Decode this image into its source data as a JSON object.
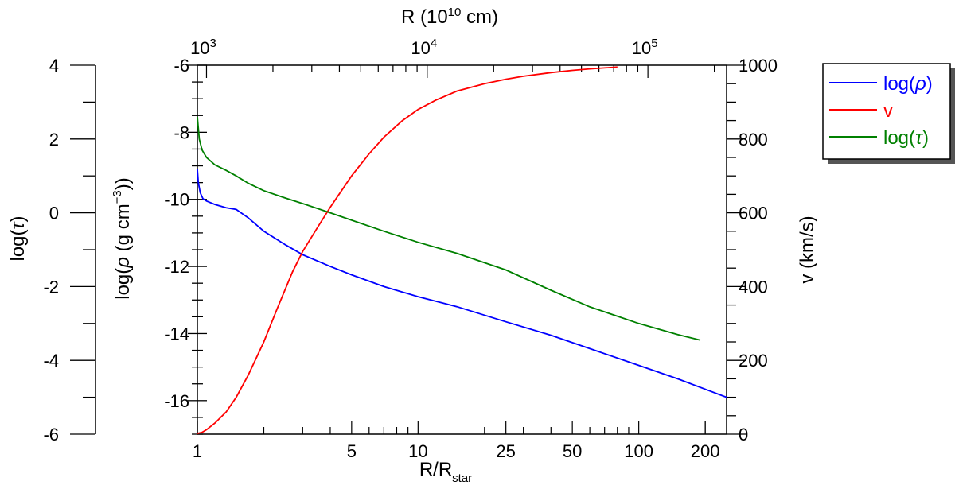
{
  "chart_data": {
    "type": "line",
    "x_scale": "log",
    "xlim": [
      1,
      250
    ],
    "xlabel_main": "R/R",
    "xlabel_sub": "star",
    "x_ticks": [
      1,
      5,
      10,
      25,
      50,
      100,
      200
    ],
    "x_tick_labels": [
      "1",
      "5",
      "10",
      "25",
      "50",
      "100",
      "200"
    ],
    "top_axis": {
      "label_main": "R (10",
      "label_sup": "10",
      "label_tail": " cm)",
      "ticks": [
        {
          "r_rstar": 1.1,
          "base": "10",
          "exp": "3"
        },
        {
          "r_rstar": 11.0,
          "base": "10",
          "exp": "4"
        },
        {
          "r_rstar": 110.0,
          "base": "10",
          "exp": "5"
        }
      ]
    },
    "rho_axis": {
      "label_pre": "log(",
      "label_rho": "ρ",
      "label_mid": " (g cm",
      "label_sup": "−3",
      "label_post": "))",
      "ylim": [
        -17,
        -6
      ],
      "ticks": [
        -6,
        -8,
        -10,
        -12,
        -14,
        -16
      ],
      "tick_labels": [
        "-6",
        "-8",
        "-10",
        "-12",
        "-14",
        "-16"
      ]
    },
    "tau_axis": {
      "label_pre": "log(",
      "label_tau": "τ",
      "label_post": ")",
      "ylim": [
        -6,
        4
      ],
      "ticks": [
        4,
        2,
        0,
        -2,
        -4,
        -6
      ],
      "tick_labels": [
        "4",
        "2",
        "0",
        "-2",
        "-4",
        "-6"
      ]
    },
    "v_axis": {
      "label": "v (km/s)",
      "ylim": [
        0,
        1000
      ],
      "ticks": [
        1000,
        800,
        600,
        400,
        200,
        0
      ],
      "tick_labels": [
        "1000",
        "800",
        "600",
        "400",
        "200",
        "0"
      ]
    },
    "series": [
      {
        "name": "log(ρ)",
        "label_pre": "log(",
        "label_sym": "ρ",
        "label_post": ")",
        "color": "#0000ff",
        "axis": "rho",
        "x": [
          1.0,
          1.01,
          1.03,
          1.06,
          1.1,
          1.2,
          1.35,
          1.5,
          1.7,
          2.0,
          2.5,
          3.0,
          4.0,
          5.0,
          7.0,
          10.0,
          15.0,
          25.0,
          40.0,
          60.0,
          100.0,
          150.0,
          250.0
        ],
        "y": [
          -9.1,
          -9.5,
          -9.8,
          -9.98,
          -10.05,
          -10.15,
          -10.25,
          -10.3,
          -10.55,
          -10.95,
          -11.35,
          -11.65,
          -12.0,
          -12.25,
          -12.6,
          -12.9,
          -13.2,
          -13.65,
          -14.05,
          -14.45,
          -14.95,
          -15.35,
          -15.9
        ]
      },
      {
        "name": "v",
        "label_pre": "v",
        "label_sym": "",
        "label_post": "",
        "color": "#ff0000",
        "axis": "v",
        "x": [
          1.0,
          1.05,
          1.1,
          1.2,
          1.35,
          1.5,
          1.7,
          2.0,
          2.3,
          2.7,
          3.0,
          3.5,
          4.0,
          5.0,
          6.0,
          7.0,
          8.5,
          10.0,
          12.0,
          15.0,
          20.0,
          25.0,
          30.0,
          40.0,
          50.0,
          60.0,
          80.0
        ],
        "y": [
          2,
          5,
          12,
          30,
          60,
          100,
          160,
          250,
          340,
          440,
          495,
          560,
          615,
          700,
          760,
          805,
          850,
          880,
          905,
          930,
          950,
          962,
          970,
          980,
          986,
          990,
          995
        ]
      },
      {
        "name": "log(τ)",
        "label_pre": "log(",
        "label_sym": "τ",
        "label_post": ")",
        "color": "#008000",
        "axis": "tau",
        "x": [
          1.0,
          1.02,
          1.05,
          1.1,
          1.2,
          1.35,
          1.5,
          1.7,
          2.0,
          2.5,
          3.0,
          4.0,
          5.0,
          7.0,
          10.0,
          15.0,
          25.0,
          40.0,
          60.0,
          100.0,
          150.0,
          190.0
        ],
        "y": [
          2.6,
          2.0,
          1.7,
          1.5,
          1.3,
          1.15,
          1.0,
          0.8,
          0.6,
          0.4,
          0.25,
          0.0,
          -0.2,
          -0.5,
          -0.8,
          -1.1,
          -1.55,
          -2.1,
          -2.55,
          -3.0,
          -3.3,
          -3.45
        ]
      }
    ],
    "legend_position": "top-right"
  }
}
